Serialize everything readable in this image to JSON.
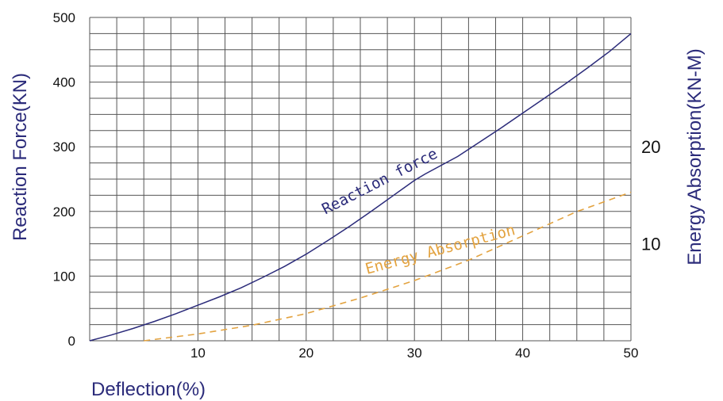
{
  "chart_data": {
    "type": "line",
    "title": "",
    "xlabel": "Deflection(%)",
    "ylabel": "Reaction Force(KN)",
    "y2label": "Energy Absorption(KN-M)",
    "xlim": [
      0,
      50
    ],
    "ylim": [
      0,
      500
    ],
    "y2lim": [
      0,
      33.3
    ],
    "x_ticks": [
      10,
      20,
      30,
      40,
      50
    ],
    "y_ticks": [
      0,
      100,
      200,
      300,
      400,
      500
    ],
    "y2_ticks": [
      10,
      20
    ],
    "grid": true,
    "colors": {
      "reaction": "#2b2b7a",
      "energy": "#e3a340",
      "grid": "#555555"
    },
    "series": [
      {
        "label": "Reaction force",
        "axis": "left",
        "style": "solid",
        "x": [
          0,
          2,
          4,
          6,
          8,
          10,
          12,
          14,
          16,
          18,
          20,
          22,
          24,
          26,
          28,
          30,
          31,
          34,
          36,
          38,
          40,
          42,
          44,
          46,
          48,
          50
        ],
        "y": [
          0,
          9,
          19,
          30,
          42,
          55,
          68,
          82,
          98,
          115,
          134,
          155,
          177,
          200,
          224,
          248,
          258,
          285,
          307,
          329,
          352,
          375,
          398,
          422,
          447,
          475
        ]
      },
      {
        "label": "Energy Absorption",
        "axis": "right",
        "style": "dashed",
        "x": [
          5,
          10,
          15,
          20,
          25,
          30,
          35,
          40,
          45,
          50
        ],
        "y": [
          0,
          0.7,
          1.6,
          2.8,
          4.4,
          6.2,
          8.3,
          10.8,
          13.3,
          15.3
        ]
      }
    ]
  }
}
